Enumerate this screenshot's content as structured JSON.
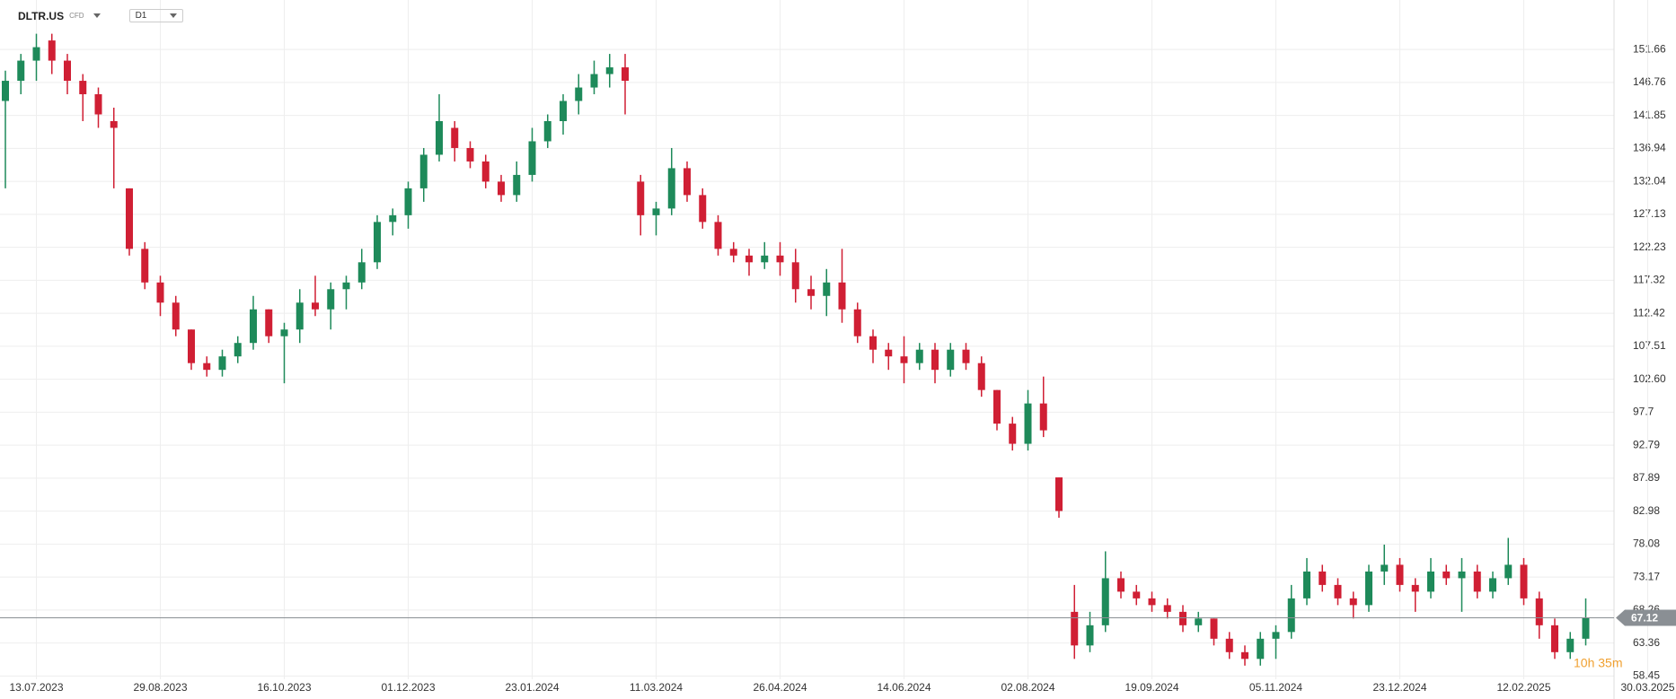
{
  "chart_data": {
    "type": "candlestick",
    "title": "DLTR.US",
    "subtitle": "CFD",
    "timeframe": "D1",
    "countdown": "10h 35m",
    "last_price": 67.12,
    "up_color": "#1e8a5a",
    "down_color": "#d01f34",
    "grid": true,
    "categories": [
      null,
      null,
      "13.07.2023",
      null,
      null,
      null,
      null,
      null,
      null,
      null,
      "29.08.2023",
      null,
      null,
      null,
      null,
      null,
      null,
      null,
      "16.10.2023",
      null,
      null,
      null,
      null,
      null,
      null,
      null,
      "01.12.2023",
      null,
      null,
      null,
      null,
      null,
      null,
      null,
      "23.01.2024",
      null,
      null,
      null,
      null,
      null,
      null,
      null,
      "11.03.2024",
      null,
      null,
      null,
      null,
      null,
      null,
      null,
      "26.04.2024",
      null,
      null,
      null,
      null,
      null,
      null,
      null,
      "14.06.2024",
      null,
      null,
      null,
      null,
      null,
      null,
      null,
      "02.08.2024",
      null,
      null,
      null,
      null,
      null,
      null,
      null,
      "19.09.2024",
      null,
      null,
      null,
      null,
      null,
      null,
      null,
      "05.11.2024",
      null,
      null,
      null,
      null,
      null,
      null,
      null,
      "23.12.2024",
      null,
      null,
      null,
      null,
      null,
      null,
      null,
      "12.02.2025",
      null,
      null,
      null,
      null,
      null,
      null,
      null,
      "30.03.2025"
    ],
    "open": [
      144,
      147,
      150,
      153,
      150,
      147,
      145,
      141,
      131,
      122,
      117,
      114,
      110,
      105,
      104,
      106,
      108,
      113,
      109,
      110,
      114,
      113,
      116,
      117,
      120,
      126,
      127,
      131,
      136,
      140,
      137,
      135,
      132,
      130,
      133,
      138,
      141,
      144,
      146,
      148,
      149,
      132,
      127,
      128,
      134,
      130,
      126,
      122,
      121,
      120,
      121,
      120,
      116,
      115,
      117,
      113,
      109,
      107,
      106,
      105,
      107,
      104,
      107,
      105,
      101,
      96,
      93,
      99,
      88,
      68,
      63,
      66,
      73,
      71,
      70,
      69,
      68,
      66,
      67,
      64,
      62,
      61,
      64,
      65,
      70,
      74,
      72,
      70,
      69,
      74,
      75,
      72,
      71,
      74,
      73,
      74,
      71,
      73,
      75,
      70,
      66,
      62,
      64,
      null,
      null,
      null,
      null
    ],
    "high": [
      148.5,
      151,
      154,
      154,
      151,
      148,
      146,
      143,
      131,
      123,
      118,
      115,
      110,
      106,
      107,
      109,
      115,
      113,
      111,
      116,
      118,
      117,
      118,
      122,
      127,
      128,
      132,
      137,
      145,
      141,
      138,
      136,
      133,
      135,
      140,
      142,
      145,
      148,
      150,
      151,
      151,
      133,
      129,
      137,
      135,
      131,
      127,
      123,
      122,
      123,
      123,
      122,
      118,
      119,
      122,
      114,
      110,
      108,
      109,
      108,
      108,
      108,
      108,
      106,
      101,
      97,
      101,
      103,
      88,
      72,
      68,
      77,
      74,
      72,
      71,
      70,
      69,
      68,
      67,
      65,
      63,
      65,
      66,
      72,
      76,
      75,
      73,
      71,
      75,
      78,
      76,
      73,
      76,
      75,
      76,
      75,
      74,
      79,
      76,
      71,
      67,
      65,
      70,
      null,
      null,
      null,
      null
    ],
    "low": [
      131,
      145,
      147,
      148,
      145,
      141,
      140,
      131,
      121,
      116,
      112,
      109,
      104,
      103,
      103,
      105,
      107,
      108,
      102,
      108,
      112,
      110,
      113,
      116,
      119,
      124,
      125,
      129,
      135,
      135,
      134,
      131,
      129,
      129,
      132,
      137,
      139,
      142,
      145,
      146,
      142,
      124,
      124,
      127,
      129,
      125,
      121,
      120,
      118,
      119,
      118,
      114,
      113,
      112,
      111,
      108,
      105,
      104,
      102,
      104,
      102,
      103,
      104,
      100,
      95,
      92,
      92,
      94,
      82,
      61,
      62,
      65,
      70,
      69,
      68,
      67,
      65,
      65,
      63,
      61,
      60,
      60,
      61,
      64,
      69,
      71,
      69,
      67,
      68,
      72,
      71,
      68,
      70,
      72,
      68,
      70,
      70,
      72,
      69,
      64,
      61,
      61,
      63,
      null,
      null,
      null,
      null
    ],
    "close": [
      147,
      150,
      152,
      150,
      147,
      145,
      142,
      140,
      122,
      117,
      114,
      110,
      105,
      104,
      106,
      108,
      113,
      109,
      110,
      114,
      113,
      116,
      117,
      120,
      126,
      127,
      131,
      136,
      141,
      137,
      135,
      132,
      130,
      133,
      138,
      141,
      144,
      146,
      148,
      149,
      147,
      127,
      128,
      134,
      130,
      126,
      122,
      121,
      120,
      121,
      120,
      116,
      115,
      117,
      113,
      109,
      107,
      106,
      105,
      107,
      104,
      107,
      105,
      101,
      96,
      93,
      99,
      95,
      83,
      63,
      66,
      73,
      71,
      70,
      69,
      68,
      66,
      67,
      64,
      62,
      61,
      64,
      65,
      70,
      74,
      72,
      70,
      69,
      74,
      75,
      72,
      71,
      74,
      73,
      74,
      71,
      73,
      75,
      70,
      66,
      62,
      64,
      67.12,
      null,
      null,
      null,
      null
    ],
    "ylim": [
      57.97,
      159.02
    ],
    "yticks": [
      {
        "value": 58.45,
        "label": "58.45"
      },
      63.36,
      68.26,
      73.17,
      78.08,
      82.98,
      87.89,
      92.79,
      97.7,
      {
        "value": 102.6,
        "label": "102.60"
      },
      107.51,
      112.42,
      117.32,
      122.23,
      127.13,
      132.04,
      136.94,
      141.85,
      146.76,
      151.66
    ]
  }
}
